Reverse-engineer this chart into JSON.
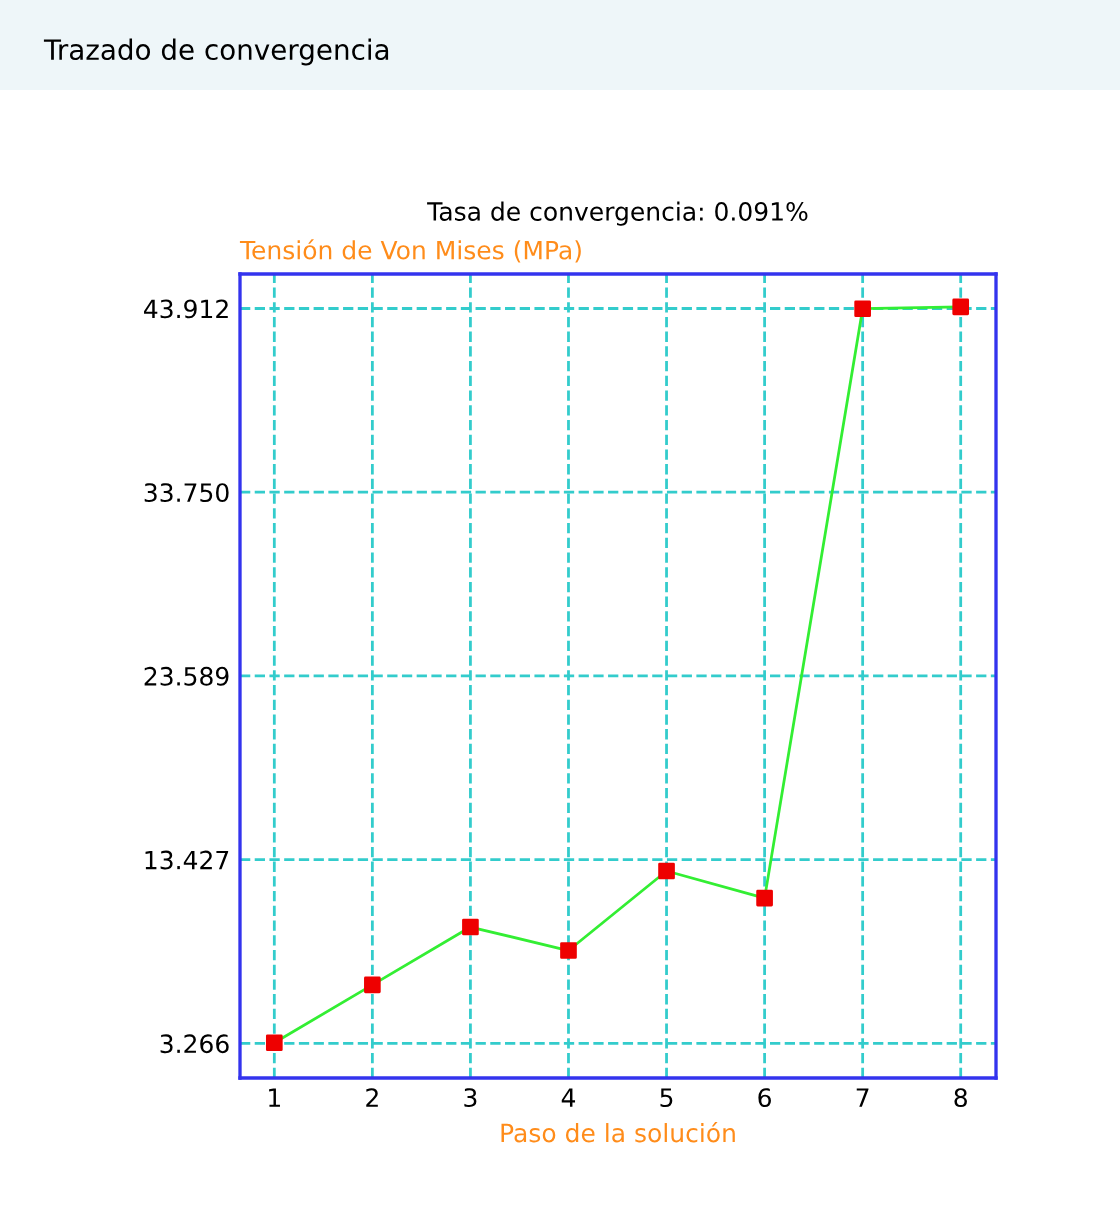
{
  "chart_data": {
    "type": "line",
    "title": "Trazado de convergencia",
    "subtitle": "Tasa de convergencia: 0.091%",
    "xlabel": "Paso de la solución",
    "ylabel": "Tensión de Von Mises (MPa)",
    "x": [
      1,
      2,
      3,
      4,
      5,
      6,
      7,
      8
    ],
    "series": [
      {
        "color": "#33ee33",
        "colors": [
          "#ee0000",
          "#ee0000",
          "#ee0000",
          "#ee0000",
          "#ee0000",
          "#ee0000",
          "#ee0000",
          "#ee0000"
        ],
        "values": [
          3.3,
          6.5,
          9.7,
          8.4,
          12.8,
          11.3,
          43.9,
          44.0
        ]
      }
    ],
    "xlim": [
      0.65,
      8.36
    ],
    "xticks": [
      1,
      2,
      3,
      4,
      5,
      6,
      7,
      8
    ],
    "ylim": [
      1.35,
      45.82
    ],
    "yticks": [
      {
        "value": 3.266,
        "label": "3.266"
      },
      {
        "value": 13.427,
        "label": "13.427"
      },
      {
        "value": 23.589,
        "label": "23.589"
      },
      {
        "value": 33.75,
        "label": "33.750"
      },
      {
        "value": 43.912,
        "label": "43.912"
      }
    ],
    "grid": true,
    "marker": "square",
    "line_style": "solid",
    "legend": false
  }
}
